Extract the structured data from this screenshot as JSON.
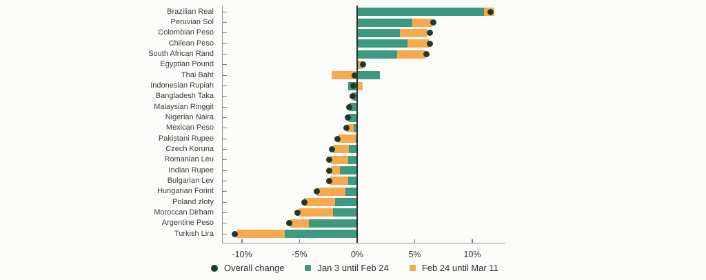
{
  "chart_data": {
    "type": "bar",
    "orientation": "horizontal",
    "stacked": true,
    "unit": "%",
    "title": "",
    "categories": [
      "Brazilian Real",
      "Peruvian Sol",
      "Colombian Peso",
      "Chilean Peso",
      "South African Rand",
      "Egyptian Pound",
      "Thai Baht",
      "Indonesian Rupiah",
      "Bangladesh Taka",
      "Malaysian Ringgit",
      "Nigerian Naira",
      "Mexican Peso",
      "Pakistani Rupee",
      "Czech Koruna",
      "Romanian Leu",
      "Indian Rupee",
      "Bulgarian Lev",
      "Hungarian Forint",
      "Poland złoty",
      "Moroccan Dirham",
      "Argentine Peso",
      "Turkish Lira"
    ],
    "series": [
      {
        "name": "Jan 3 until Feb 24",
        "color": "#3d9a80",
        "values": [
          11.0,
          4.8,
          3.7,
          4.4,
          3.5,
          0.1,
          2.0,
          -0.8,
          -0.3,
          -0.6,
          -0.7,
          -0.3,
          -0.1,
          -0.7,
          -0.8,
          -1.5,
          -0.8,
          -1.0,
          -1.9,
          -2.1,
          -4.2,
          -6.3
        ]
      },
      {
        "name": "Feb 24 until Mar 11",
        "color": "#f7a950",
        "values": [
          0.9,
          1.7,
          2.4,
          1.8,
          2.4,
          0.4,
          -2.2,
          0.5,
          -0.1,
          -0.1,
          -0.1,
          -0.6,
          -1.6,
          -1.4,
          -1.5,
          -0.8,
          -1.6,
          -2.5,
          -2.7,
          -3.0,
          -1.6,
          -4.2
        ]
      }
    ],
    "overall": {
      "name": "Overall change",
      "color": "#1f3a2d",
      "values": [
        11.6,
        6.6,
        6.3,
        6.3,
        6.0,
        0.5,
        -0.2,
        -0.3,
        -0.4,
        -0.7,
        -0.8,
        -0.9,
        -1.7,
        -2.2,
        -2.4,
        -2.4,
        -2.4,
        -3.5,
        -4.6,
        -5.2,
        -5.9,
        -10.6
      ]
    },
    "x_axis": {
      "tick_labels": [
        "-10%",
        "-5%",
        "0%",
        "5%",
        "10%"
      ],
      "tick_values": [
        -10,
        -5,
        0,
        5,
        10
      ],
      "range": [
        -11.7,
        12.8
      ],
      "grid": false
    },
    "legend_position": "bottom"
  },
  "colors": {
    "axis": "#8f8f8f",
    "zero_line": "#2e2e2e",
    "text": "#3b3b3b",
    "background": "#fcfcfa"
  }
}
